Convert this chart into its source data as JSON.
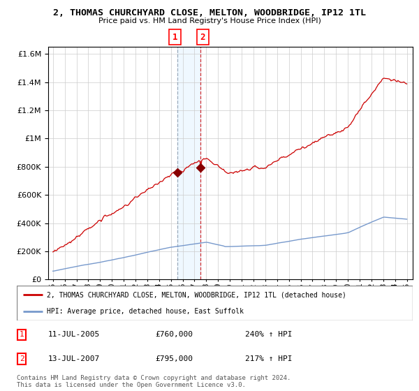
{
  "title": "2, THOMAS CHURCHYARD CLOSE, MELTON, WOODBRIDGE, IP12 1TL",
  "subtitle": "Price paid vs. HM Land Registry's House Price Index (HPI)",
  "legend_red": "2, THOMAS CHURCHYARD CLOSE, MELTON, WOODBRIDGE, IP12 1TL (detached house)",
  "legend_blue": "HPI: Average price, detached house, East Suffolk",
  "sale1_date": "11-JUL-2005",
  "sale1_price": 760000,
  "sale1_hpi": "240% ↑ HPI",
  "sale2_date": "13-JUL-2007",
  "sale2_price": 795000,
  "sale2_hpi": "217% ↑ HPI",
  "footer": "Contains HM Land Registry data © Crown copyright and database right 2024.\nThis data is licensed under the Open Government Licence v3.0.",
  "ylim": [
    0,
    1650000
  ],
  "sale1_x": 2005.53,
  "sale2_x": 2007.53,
  "red_color": "#cc0000",
  "blue_color": "#7799cc",
  "background_color": "#ffffff",
  "grid_color": "#cccccc"
}
